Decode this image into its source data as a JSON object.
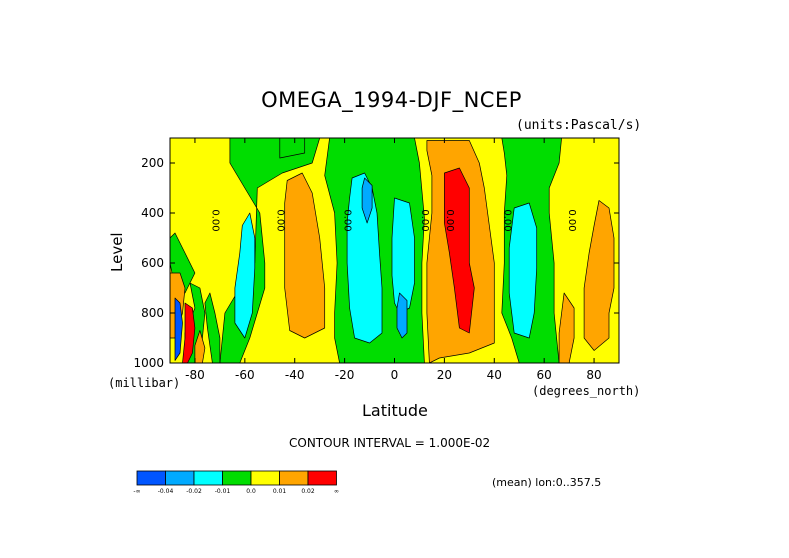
{
  "chart_data": {
    "type": "heatmap",
    "title": "OMEGA_1994-DJF_NCEP",
    "units": "(units:Pascal/s)",
    "xlabel": "Latitude",
    "x_unit": "(degrees_north)",
    "ylabel": "Level",
    "y_unit": "(millibar)",
    "xlim": [
      -90,
      90
    ],
    "ylim": [
      1000,
      100
    ],
    "x_ticks": [
      -80,
      -60,
      -40,
      -20,
      0,
      20,
      40,
      60,
      80
    ],
    "x_tick_labels": [
      "-80",
      "-60",
      "-40",
      "-20",
      "0",
      "20",
      "40",
      "60",
      "80"
    ],
    "y_ticks": [
      200,
      400,
      600,
      800,
      1000
    ],
    "y_tick_labels": [
      "200",
      "400",
      "600",
      "800",
      "1000"
    ],
    "contour_interval_text": "CONTOUR INTERVAL = 1.000E-02",
    "mean_text": "(mean) lon:0..357.5",
    "zero_contour_label": "0.00",
    "zero_label_positions": [
      [
        -73,
        430
      ],
      [
        -47,
        430
      ],
      [
        -20,
        430
      ],
      [
        11,
        430
      ],
      [
        21,
        430
      ],
      [
        44,
        430
      ],
      [
        70,
        430
      ]
    ],
    "color_scale": {
      "colors": [
        "#0055ff",
        "#00aaff",
        "#00ffff",
        "#00dd00",
        "#ffff00",
        "#ffa500",
        "#ff0000"
      ],
      "tick_labels": [
        "-∞",
        "-0.04",
        "-0.02",
        "-0.01",
        "0.0",
        "0.01",
        "0.02",
        "∞"
      ]
    },
    "regions": [
      {
        "level": "positive",
        "value": 0.005,
        "poly": [
          [
            -90,
            100
          ],
          [
            -90,
            1000
          ],
          [
            90,
            1000
          ],
          [
            90,
            100
          ]
        ]
      },
      {
        "level": "negative",
        "value": -0.005,
        "poly": [
          [
            -66,
            100
          ],
          [
            -30,
            100
          ],
          [
            -33,
            200
          ],
          [
            -45,
            240
          ],
          [
            -55,
            300
          ],
          [
            -56,
            600
          ],
          [
            -62,
            700
          ],
          [
            -68,
            800
          ],
          [
            -70,
            1000
          ],
          [
            -62,
            1000
          ],
          [
            -58,
            900
          ],
          [
            -55,
            800
          ],
          [
            -52,
            700
          ],
          [
            -52,
            600
          ],
          [
            -54,
            400
          ],
          [
            -60,
            300
          ],
          [
            -66,
            200
          ]
        ]
      },
      {
        "level": "negative",
        "value": -0.005,
        "poly": [
          [
            -88,
            480
          ],
          [
            -84,
            560
          ],
          [
            -80,
            640
          ],
          [
            -84,
            720
          ],
          [
            -88,
            700
          ],
          [
            -90,
            600
          ],
          [
            -90,
            500
          ]
        ]
      },
      {
        "level": "negative",
        "value": -0.005,
        "poly": [
          [
            -82,
            680
          ],
          [
            -78,
            700
          ],
          [
            -76,
            800
          ],
          [
            -77,
            900
          ],
          [
            -79,
            1000
          ],
          [
            -84,
            1000
          ],
          [
            -84,
            880
          ],
          [
            -80,
            780
          ]
        ]
      },
      {
        "level": "negative",
        "value": -0.005,
        "poly": [
          [
            -74,
            720
          ],
          [
            -72,
            800
          ],
          [
            -70,
            900
          ],
          [
            -70,
            1000
          ],
          [
            -73,
            1000
          ],
          [
            -75,
            860
          ],
          [
            -76,
            760
          ]
        ]
      },
      {
        "level": "negative",
        "value": -0.005,
        "poly": [
          [
            -26,
            100
          ],
          [
            8,
            100
          ],
          [
            10,
            200
          ],
          [
            12,
            420
          ],
          [
            11,
            600
          ],
          [
            11,
            800
          ],
          [
            12,
            1000
          ],
          [
            -22,
            1000
          ],
          [
            -24,
            900
          ],
          [
            -24,
            800
          ],
          [
            -23,
            600
          ],
          [
            -24,
            400
          ],
          [
            -28,
            250
          ]
        ]
      },
      {
        "level": "negative",
        "value": -0.005,
        "poly": [
          [
            43,
            100
          ],
          [
            67,
            100
          ],
          [
            66,
            200
          ],
          [
            62,
            300
          ],
          [
            62,
            400
          ],
          [
            64,
            600
          ],
          [
            64,
            800
          ],
          [
            66,
            1000
          ],
          [
            50,
            1000
          ],
          [
            47,
            900
          ],
          [
            43,
            800
          ],
          [
            44,
            600
          ],
          [
            44,
            400
          ],
          [
            45,
            250
          ],
          [
            44,
            160
          ]
        ]
      },
      {
        "level": "negative",
        "value": -0.005,
        "poly": [
          [
            -46,
            100
          ],
          [
            -36,
            100
          ],
          [
            -36,
            160
          ],
          [
            -46,
            180
          ]
        ]
      },
      {
        "level": "positive",
        "value": 0.015,
        "poly": [
          [
            -43,
            270
          ],
          [
            -37,
            240
          ],
          [
            -33,
            320
          ],
          [
            -30,
            500
          ],
          [
            -28,
            700
          ],
          [
            -28,
            860
          ],
          [
            -36,
            900
          ],
          [
            -42,
            870
          ],
          [
            -44,
            700
          ],
          [
            -44,
            500
          ],
          [
            -44,
            360
          ]
        ]
      },
      {
        "level": "positive",
        "value": 0.015,
        "poly": [
          [
            -90,
            640
          ],
          [
            -86,
            640
          ],
          [
            -84,
            700
          ],
          [
            -85,
            800
          ],
          [
            -88,
            900
          ],
          [
            -90,
            900
          ]
        ]
      },
      {
        "level": "positive",
        "value": 0.015,
        "poly": [
          [
            -78,
            870
          ],
          [
            -76,
            940
          ],
          [
            -77,
            1000
          ],
          [
            -80,
            1000
          ],
          [
            -80,
            930
          ]
        ]
      },
      {
        "level": "positive",
        "value": 0.015,
        "poly": [
          [
            13,
            110
          ],
          [
            30,
            110
          ],
          [
            34,
            200
          ],
          [
            36,
            300
          ],
          [
            38,
            450
          ],
          [
            40,
            600
          ],
          [
            40,
            800
          ],
          [
            40,
            920
          ],
          [
            30,
            960
          ],
          [
            18,
            980
          ],
          [
            14,
            1000
          ],
          [
            13,
            800
          ],
          [
            13,
            600
          ],
          [
            15,
            400
          ],
          [
            15,
            250
          ],
          [
            13,
            150
          ]
        ]
      },
      {
        "level": "positive",
        "value": 0.015,
        "poly": [
          [
            82,
            350
          ],
          [
            86,
            380
          ],
          [
            88,
            500
          ],
          [
            88,
            700
          ],
          [
            86,
            800
          ],
          [
            86,
            900
          ],
          [
            80,
            950
          ],
          [
            76,
            900
          ],
          [
            76,
            700
          ],
          [
            78,
            560
          ],
          [
            80,
            450
          ]
        ]
      },
      {
        "level": "positive",
        "value": 0.015,
        "poly": [
          [
            68,
            720
          ],
          [
            72,
            780
          ],
          [
            72,
            900
          ],
          [
            70,
            1000
          ],
          [
            66,
            1000
          ],
          [
            66,
            880
          ]
        ]
      },
      {
        "level": "positive",
        "value": 0.025,
        "poly": [
          [
            20,
            240
          ],
          [
            26,
            220
          ],
          [
            30,
            300
          ],
          [
            30,
            480
          ],
          [
            30,
            600
          ],
          [
            32,
            700
          ],
          [
            30,
            880
          ],
          [
            26,
            860
          ],
          [
            24,
            700
          ],
          [
            22,
            560
          ],
          [
            20,
            440
          ],
          [
            20,
            320
          ]
        ]
      },
      {
        "level": "negative",
        "value": -0.015,
        "poly": [
          [
            -58,
            400
          ],
          [
            -56,
            500
          ],
          [
            -56,
            620
          ],
          [
            -57,
            800
          ],
          [
            -60,
            900
          ],
          [
            -64,
            840
          ],
          [
            -64,
            700
          ],
          [
            -62,
            560
          ],
          [
            -61,
            450
          ]
        ]
      },
      {
        "level": "negative",
        "value": -0.015,
        "poly": [
          [
            -17,
            260
          ],
          [
            -12,
            240
          ],
          [
            -9,
            300
          ],
          [
            -7,
            400
          ],
          [
            -6,
            560
          ],
          [
            -5,
            700
          ],
          [
            -5,
            880
          ],
          [
            -10,
            920
          ],
          [
            -16,
            900
          ],
          [
            -18,
            780
          ],
          [
            -19,
            600
          ],
          [
            -19,
            440
          ],
          [
            -18,
            340
          ]
        ]
      },
      {
        "level": "negative",
        "value": -0.015,
        "poly": [
          [
            0,
            340
          ],
          [
            6,
            360
          ],
          [
            8,
            500
          ],
          [
            8,
            680
          ],
          [
            6,
            780
          ],
          [
            2,
            800
          ],
          [
            0,
            760
          ],
          [
            -1,
            650
          ],
          [
            -1,
            500
          ]
        ]
      },
      {
        "level": "negative",
        "value": -0.015,
        "poly": [
          [
            48,
            380
          ],
          [
            54,
            360
          ],
          [
            57,
            460
          ],
          [
            57,
            620
          ],
          [
            56,
            800
          ],
          [
            54,
            900
          ],
          [
            48,
            880
          ],
          [
            46,
            720
          ],
          [
            46,
            540
          ]
        ]
      },
      {
        "level": "negative",
        "value": -0.025,
        "poly": [
          [
            -12,
            260
          ],
          [
            -9,
            290
          ],
          [
            -9,
            380
          ],
          [
            -11,
            440
          ],
          [
            -13,
            380
          ],
          [
            -13,
            300
          ]
        ]
      },
      {
        "level": "negative",
        "value": -0.025,
        "poly": [
          [
            2,
            720
          ],
          [
            5,
            750
          ],
          [
            5,
            880
          ],
          [
            3,
            900
          ],
          [
            1,
            860
          ],
          [
            1,
            780
          ]
        ]
      },
      {
        "level": "negative",
        "value": -0.045,
        "poly": [
          [
            -88,
            740
          ],
          [
            -86,
            760
          ],
          [
            -85,
            840
          ],
          [
            -86,
            960
          ],
          [
            -88,
            990
          ]
        ]
      },
      {
        "level": "positive",
        "value": 0.045,
        "poly": [
          [
            -84,
            760
          ],
          [
            -81,
            780
          ],
          [
            -80,
            860
          ],
          [
            -81,
            960
          ],
          [
            -83,
            1000
          ],
          [
            -85,
            1000
          ],
          [
            -84,
            900
          ]
        ]
      }
    ]
  }
}
